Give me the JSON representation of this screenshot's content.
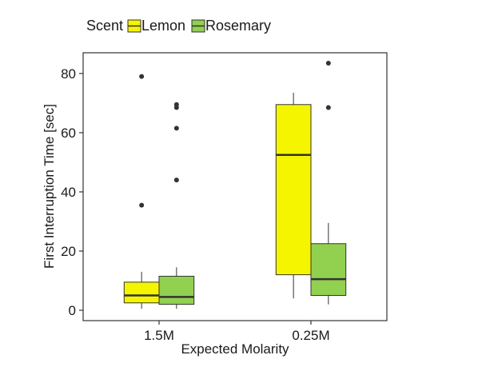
{
  "chart_data": {
    "type": "boxplot",
    "title": "",
    "xlabel": "Expected Molarity",
    "ylabel": "First Interruption Time [sec]",
    "ylim": [
      -3.5,
      87
    ],
    "yticks": [
      0,
      20,
      40,
      60,
      80
    ],
    "grid": false,
    "legend": {
      "title": "Scent",
      "placement": "top-left"
    },
    "categories": [
      "1.5M",
      "0.25M"
    ],
    "series": [
      {
        "name": "Lemon",
        "color": "#f5f500",
        "boxes": [
          {
            "category": "1.5M",
            "whisker_low": 0.5,
            "q1": 2.5,
            "median": 5,
            "q3": 9.5,
            "whisker_high": 13,
            "outliers": [
              35.5,
              79
            ]
          },
          {
            "category": "0.25M",
            "whisker_low": 4,
            "q1": 12,
            "median": 52.5,
            "q3": 69.5,
            "whisker_high": 73.5,
            "outliers": []
          }
        ]
      },
      {
        "name": "Rosemary",
        "color": "#92d050",
        "boxes": [
          {
            "category": "1.5M",
            "whisker_low": 0.5,
            "q1": 2,
            "median": 4.5,
            "q3": 11.5,
            "whisker_high": 14.5,
            "outliers": [
              44,
              61.5,
              68.5,
              69.5
            ]
          },
          {
            "category": "0.25M",
            "whisker_low": 2,
            "q1": 5,
            "median": 10.5,
            "q3": 22.5,
            "whisker_high": 29.5,
            "outliers": [
              68.5,
              83.5
            ]
          }
        ]
      }
    ]
  }
}
